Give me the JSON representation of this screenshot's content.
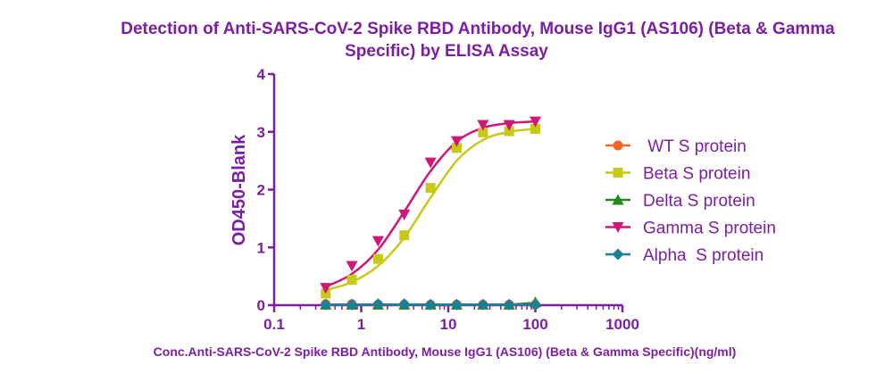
{
  "chart_data": {
    "type": "scatter",
    "title_line1": "Detection of Anti-SARS-CoV-2 Spike RBD Antibody, Mouse IgG1 (AS106) (Beta & Gamma",
    "title_line2": "Specific) by ELISA Assay",
    "xlabel": "Conc.Anti-SARS-CoV-2 Spike RBD Antibody, Mouse IgG1 (AS106) (Beta & Gamma Specific)(ng/ml)",
    "ylabel": "OD450-Blank",
    "x_scale": "log",
    "xlim": [
      0.1,
      1000
    ],
    "ylim": [
      0,
      4
    ],
    "x_ticks": [
      0.1,
      1,
      10,
      100,
      1000
    ],
    "x_tick_labels": [
      "0.1",
      "1",
      "10",
      "100",
      "1000"
    ],
    "y_ticks": [
      0,
      1,
      2,
      3,
      4
    ],
    "y_tick_labels": [
      "0",
      "1",
      "2",
      "3",
      "4"
    ],
    "grid": false,
    "legend_position": "right",
    "axis_color": "#7b1fa2",
    "series": [
      {
        "name": " WT S protein",
        "marker": "circle",
        "color": "#f26522",
        "x": [
          0.391,
          0.781,
          1.563,
          3.125,
          6.25,
          12.5,
          25,
          50,
          100
        ],
        "y": [
          0.02,
          0.02,
          0.01,
          0.01,
          0.01,
          0.01,
          0.01,
          0.01,
          0.01
        ],
        "curve": [
          0.01,
          0.01,
          0.01,
          0.01,
          0.01,
          0.01,
          0.01,
          0.01,
          0.01
        ]
      },
      {
        "name": "Beta S protein",
        "marker": "square",
        "color": "#c8c817",
        "x": [
          0.391,
          0.781,
          1.563,
          3.125,
          6.25,
          12.5,
          25,
          50,
          100
        ],
        "y": [
          0.2,
          0.44,
          0.8,
          1.21,
          2.03,
          2.72,
          2.99,
          3.01,
          3.05
        ],
        "curve": [
          0.26,
          0.4,
          0.68,
          1.17,
          1.86,
          2.5,
          2.86,
          3.0,
          3.05
        ]
      },
      {
        "name": "Delta S protein",
        "marker": "triangle-up",
        "color": "#1e8a1e",
        "x": [
          0.391,
          0.781,
          1.563,
          3.125,
          6.25,
          12.5,
          25,
          50,
          100
        ],
        "y": [
          0.01,
          0.01,
          0.01,
          0.01,
          0.01,
          0.01,
          0.01,
          0.01,
          0.05
        ],
        "curve": [
          0.01,
          0.01,
          0.01,
          0.01,
          0.01,
          0.01,
          0.01,
          0.01,
          0.04
        ]
      },
      {
        "name": "Gamma S protein",
        "marker": "triangle-down",
        "color": "#d01777",
        "x": [
          0.391,
          0.781,
          1.563,
          3.125,
          6.25,
          12.5,
          25,
          50,
          100
        ],
        "y": [
          0.3,
          0.68,
          1.11,
          1.57,
          2.47,
          2.84,
          3.12,
          3.12,
          3.18
        ],
        "curve": [
          0.32,
          0.54,
          0.96,
          1.62,
          2.32,
          2.83,
          3.07,
          3.15,
          3.18
        ]
      },
      {
        "name": "Alpha  S protein",
        "marker": "diamond",
        "color": "#1b7f9a",
        "x": [
          0.391,
          0.781,
          1.563,
          3.125,
          6.25,
          12.5,
          25,
          50,
          100
        ],
        "y": [
          0.01,
          0.01,
          0.02,
          0.02,
          0.01,
          0.01,
          0.01,
          0.01,
          0.01
        ],
        "curve": [
          0.01,
          0.01,
          0.01,
          0.01,
          0.01,
          0.01,
          0.01,
          0.01,
          0.01
        ]
      }
    ]
  }
}
